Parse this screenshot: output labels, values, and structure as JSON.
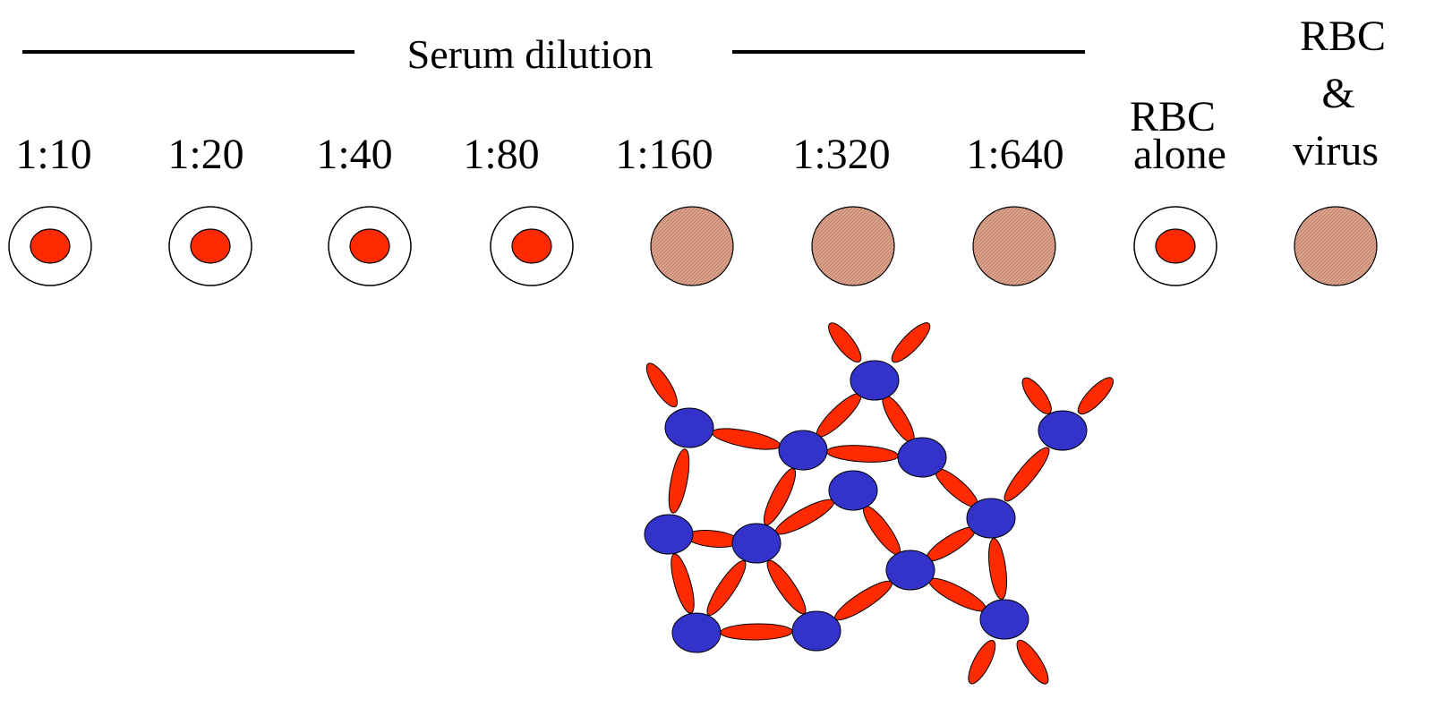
{
  "header": {
    "title": "Serum dilution"
  },
  "dilutions": [
    "1:10",
    "1:20",
    "1:40",
    "1:80",
    "1:160",
    "1:320",
    "1:640"
  ],
  "controls": [
    {
      "lines": [
        "RBC",
        "alone"
      ]
    },
    {
      "lines": [
        "RBC",
        "&",
        "virus"
      ]
    }
  ]
}
